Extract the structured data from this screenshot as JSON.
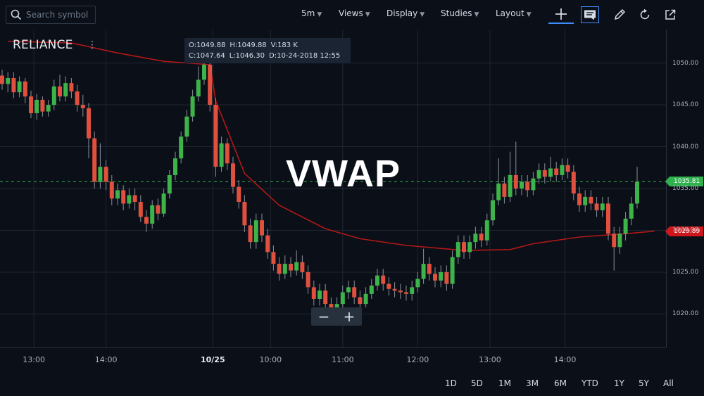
{
  "toolbar": {
    "search_placeholder": "Search symbol",
    "menus": [
      {
        "label": "5m"
      },
      {
        "label": "Views"
      },
      {
        "label": "Display"
      },
      {
        "label": "Studies"
      },
      {
        "label": "Layout"
      }
    ],
    "icons": [
      "crosshair-icon",
      "comment-icon",
      "pencil-icon",
      "refresh-icon",
      "popout-icon"
    ]
  },
  "symbol": "RELIANCE",
  "ohlc": {
    "open": "O:1049.88",
    "high": "H:1049.88",
    "volume": "V:183 K",
    "close": "C:1047.64",
    "low": "L:1046.30",
    "datetime": "D:10-24-2018 12:55"
  },
  "title": "VWAP",
  "y_axis": {
    "ticks": [
      "1050.00",
      "1045.00",
      "1040.00",
      "1035.00",
      "1030.00",
      "1025.00",
      "1020.00"
    ],
    "last_price_label": "1035.81",
    "vwap_label": "1029.89"
  },
  "x_axis": {
    "ticks": [
      "13:00",
      "14:00",
      "10/25",
      "10:00",
      "11:00",
      "12:00",
      "13:00",
      "14:00"
    ]
  },
  "ranges": [
    "1D",
    "5D",
    "1M",
    "3M",
    "6M",
    "YTD",
    "1Y",
    "5Y",
    "All"
  ],
  "zoom": {
    "minus": "−",
    "plus": "+"
  },
  "colors": {
    "background": "#0b0f17",
    "up": "#3db34a",
    "down": "#e0503e",
    "vwap": "#b01818",
    "last_price": "#2fb24c",
    "accent": "#3f8cff"
  },
  "chart_data": {
    "type": "candlestick",
    "ylim": [
      1016,
      1054
    ],
    "candles": [
      [
        1048.5,
        1047.5,
        1049.2,
        1046.8
      ],
      [
        1047.5,
        1048.2,
        1048.9,
        1046.5
      ],
      [
        1048.2,
        1046.5,
        1048.9,
        1045.8
      ],
      [
        1046.5,
        1047.8,
        1048.4,
        1045.9
      ],
      [
        1047.8,
        1046.0,
        1048.2,
        1045.2
      ],
      [
        1046.0,
        1044.0,
        1046.7,
        1043.4
      ],
      [
        1044.0,
        1045.6,
        1046.3,
        1043.2
      ],
      [
        1045.6,
        1044.2,
        1046.0,
        1043.6
      ],
      [
        1044.2,
        1045.0,
        1045.6,
        1043.6
      ],
      [
        1045.0,
        1047.2,
        1048.0,
        1044.4
      ],
      [
        1047.2,
        1046.0,
        1048.6,
        1045.4
      ],
      [
        1046.0,
        1047.6,
        1048.4,
        1045.4
      ],
      [
        1047.6,
        1046.6,
        1048.2,
        1045.8
      ],
      [
        1046.6,
        1045.0,
        1047.4,
        1044.2
      ],
      [
        1045.0,
        1044.6,
        1046.2,
        1043.6
      ],
      [
        1044.6,
        1041.0,
        1045.2,
        1038.6
      ],
      [
        1041.0,
        1035.8,
        1041.8,
        1035.0
      ],
      [
        1035.8,
        1037.6,
        1040.4,
        1035.0
      ],
      [
        1037.6,
        1035.8,
        1038.4,
        1034.8
      ],
      [
        1035.8,
        1033.8,
        1036.6,
        1033.0
      ],
      [
        1033.8,
        1034.8,
        1035.6,
        1033.0
      ],
      [
        1034.8,
        1033.2,
        1035.4,
        1032.4
      ],
      [
        1033.2,
        1034.2,
        1035.0,
        1032.6
      ],
      [
        1034.2,
        1033.4,
        1035.0,
        1032.4
      ],
      [
        1033.4,
        1031.6,
        1034.2,
        1031.0
      ],
      [
        1031.6,
        1030.8,
        1032.4,
        1029.8
      ],
      [
        1030.8,
        1033.0,
        1033.6,
        1030.2
      ],
      [
        1033.0,
        1032.0,
        1033.8,
        1031.2
      ],
      [
        1032.0,
        1034.4,
        1035.0,
        1031.6
      ],
      [
        1034.4,
        1036.6,
        1037.2,
        1033.8
      ],
      [
        1036.6,
        1038.6,
        1039.4,
        1036.0
      ],
      [
        1038.6,
        1041.2,
        1041.8,
        1038.0
      ],
      [
        1041.2,
        1043.6,
        1044.4,
        1040.6
      ],
      [
        1043.6,
        1046.0,
        1046.8,
        1043.0
      ],
      [
        1046.0,
        1048.0,
        1049.6,
        1045.4
      ],
      [
        1048.0,
        1049.8,
        1050.6,
        1047.4
      ],
      [
        1049.8,
        1045.0,
        1050.2,
        1044.2
      ],
      [
        1045.0,
        1037.6,
        1045.8,
        1036.4
      ],
      [
        1037.6,
        1040.4,
        1041.2,
        1037.0
      ],
      [
        1040.4,
        1038.0,
        1041.0,
        1037.2
      ],
      [
        1038.0,
        1035.2,
        1038.8,
        1034.4
      ],
      [
        1035.2,
        1033.4,
        1036.0,
        1032.6
      ],
      [
        1033.4,
        1030.6,
        1034.2,
        1029.8
      ],
      [
        1030.6,
        1028.6,
        1031.4,
        1027.8
      ],
      [
        1028.6,
        1031.2,
        1032.0,
        1027.8
      ],
      [
        1031.2,
        1029.4,
        1032.0,
        1028.6
      ],
      [
        1029.4,
        1027.4,
        1030.2,
        1026.6
      ],
      [
        1027.4,
        1026.0,
        1028.2,
        1025.2
      ],
      [
        1026.0,
        1024.8,
        1026.8,
        1024.0
      ],
      [
        1024.8,
        1026.0,
        1027.0,
        1024.2
      ],
      [
        1026.0,
        1025.2,
        1026.8,
        1024.4
      ],
      [
        1025.2,
        1026.2,
        1027.6,
        1024.6
      ],
      [
        1026.2,
        1025.0,
        1027.0,
        1024.2
      ],
      [
        1025.0,
        1023.2,
        1025.8,
        1022.4
      ],
      [
        1023.2,
        1021.8,
        1024.0,
        1021.0
      ],
      [
        1021.8,
        1022.8,
        1023.6,
        1021.0
      ],
      [
        1022.8,
        1021.2,
        1023.6,
        1020.4
      ],
      [
        1021.2,
        1019.8,
        1022.0,
        1019.0
      ],
      [
        1019.8,
        1021.2,
        1022.0,
        1019.0
      ],
      [
        1021.2,
        1022.6,
        1023.4,
        1020.6
      ],
      [
        1022.6,
        1023.2,
        1024.0,
        1021.8
      ],
      [
        1023.2,
        1022.0,
        1024.0,
        1021.2
      ],
      [
        1022.0,
        1021.2,
        1022.8,
        1020.4
      ],
      [
        1021.2,
        1022.4,
        1023.2,
        1020.8
      ],
      [
        1022.4,
        1023.4,
        1024.2,
        1021.8
      ],
      [
        1023.4,
        1024.6,
        1025.4,
        1022.8
      ],
      [
        1024.6,
        1023.6,
        1025.4,
        1022.8
      ],
      [
        1023.6,
        1023.0,
        1024.4,
        1022.2
      ],
      [
        1023.0,
        1022.8,
        1023.8,
        1022.0
      ],
      [
        1022.8,
        1022.6,
        1023.6,
        1021.8
      ],
      [
        1022.6,
        1022.4,
        1023.4,
        1021.6
      ],
      [
        1022.4,
        1023.2,
        1024.0,
        1021.6
      ],
      [
        1023.2,
        1024.2,
        1025.0,
        1022.6
      ],
      [
        1024.2,
        1026.0,
        1027.8,
        1023.6
      ],
      [
        1026.0,
        1024.8,
        1026.8,
        1024.0
      ],
      [
        1024.8,
        1024.0,
        1025.6,
        1023.2
      ],
      [
        1024.0,
        1025.0,
        1025.8,
        1023.2
      ],
      [
        1025.0,
        1023.6,
        1025.8,
        1022.8
      ],
      [
        1023.6,
        1026.8,
        1027.6,
        1023.0
      ],
      [
        1026.8,
        1028.6,
        1029.4,
        1026.0
      ],
      [
        1028.6,
        1027.4,
        1029.4,
        1026.6
      ],
      [
        1027.4,
        1028.6,
        1029.4,
        1026.6
      ],
      [
        1028.6,
        1029.6,
        1030.4,
        1027.8
      ],
      [
        1029.6,
        1028.8,
        1030.4,
        1028.0
      ],
      [
        1028.8,
        1031.2,
        1032.0,
        1028.2
      ],
      [
        1031.2,
        1033.6,
        1034.4,
        1030.6
      ],
      [
        1033.6,
        1035.6,
        1038.6,
        1033.0
      ],
      [
        1035.6,
        1034.0,
        1036.4,
        1033.2
      ],
      [
        1034.0,
        1036.6,
        1039.4,
        1033.4
      ],
      [
        1036.6,
        1035.0,
        1040.6,
        1034.2
      ],
      [
        1035.0,
        1035.8,
        1036.6,
        1034.2
      ],
      [
        1035.8,
        1034.8,
        1036.6,
        1034.0
      ],
      [
        1034.8,
        1036.2,
        1037.0,
        1034.2
      ],
      [
        1036.2,
        1037.2,
        1038.0,
        1035.6
      ],
      [
        1037.2,
        1036.4,
        1038.0,
        1035.6
      ],
      [
        1036.4,
        1037.4,
        1038.8,
        1035.8
      ],
      [
        1037.4,
        1036.6,
        1038.2,
        1035.8
      ],
      [
        1036.6,
        1037.8,
        1038.6,
        1036.0
      ],
      [
        1037.8,
        1037.0,
        1038.6,
        1036.2
      ],
      [
        1037.0,
        1034.4,
        1037.8,
        1033.6
      ],
      [
        1034.4,
        1033.0,
        1035.2,
        1032.2
      ],
      [
        1033.0,
        1034.0,
        1034.8,
        1032.2
      ],
      [
        1034.0,
        1033.2,
        1034.8,
        1032.4
      ],
      [
        1033.2,
        1032.4,
        1034.0,
        1031.6
      ],
      [
        1032.4,
        1033.2,
        1034.0,
        1031.6
      ],
      [
        1033.2,
        1029.6,
        1034.0,
        1028.8
      ],
      [
        1029.6,
        1028.0,
        1030.4,
        1025.2
      ],
      [
        1028.0,
        1029.6,
        1030.4,
        1027.2
      ],
      [
        1029.6,
        1031.4,
        1032.2,
        1028.8
      ],
      [
        1031.4,
        1033.2,
        1034.0,
        1030.6
      ],
      [
        1033.2,
        1035.8,
        1037.6,
        1032.6
      ]
    ],
    "vwap": [
      [
        1,
        1052.6
      ],
      [
        12,
        1052.4
      ],
      [
        20,
        1051.2
      ],
      [
        28,
        1050.2
      ],
      [
        36,
        1049.8
      ],
      [
        37,
        1045.5
      ],
      [
        42,
        1036.8
      ],
      [
        48,
        1033.0
      ],
      [
        56,
        1030.2
      ],
      [
        62,
        1029.0
      ],
      [
        70,
        1028.2
      ],
      [
        80,
        1027.6
      ],
      [
        88,
        1027.7
      ],
      [
        92,
        1028.4
      ],
      [
        100,
        1029.2
      ],
      [
        108,
        1029.6
      ],
      [
        113,
        1029.9
      ]
    ],
    "last_price": 1035.81,
    "xticks": [
      {
        "label": "13:00",
        "index": 5.5
      },
      {
        "label": "14:00",
        "index": 18
      },
      {
        "label": "10/25",
        "index": 36.5
      },
      {
        "label": "10:00",
        "index": 46.5
      },
      {
        "label": "11:00",
        "index": 59
      },
      {
        "label": "12:00",
        "index": 72
      },
      {
        "label": "13:00",
        "index": 84.5
      },
      {
        "label": "14:00",
        "index": 97.5
      }
    ]
  }
}
